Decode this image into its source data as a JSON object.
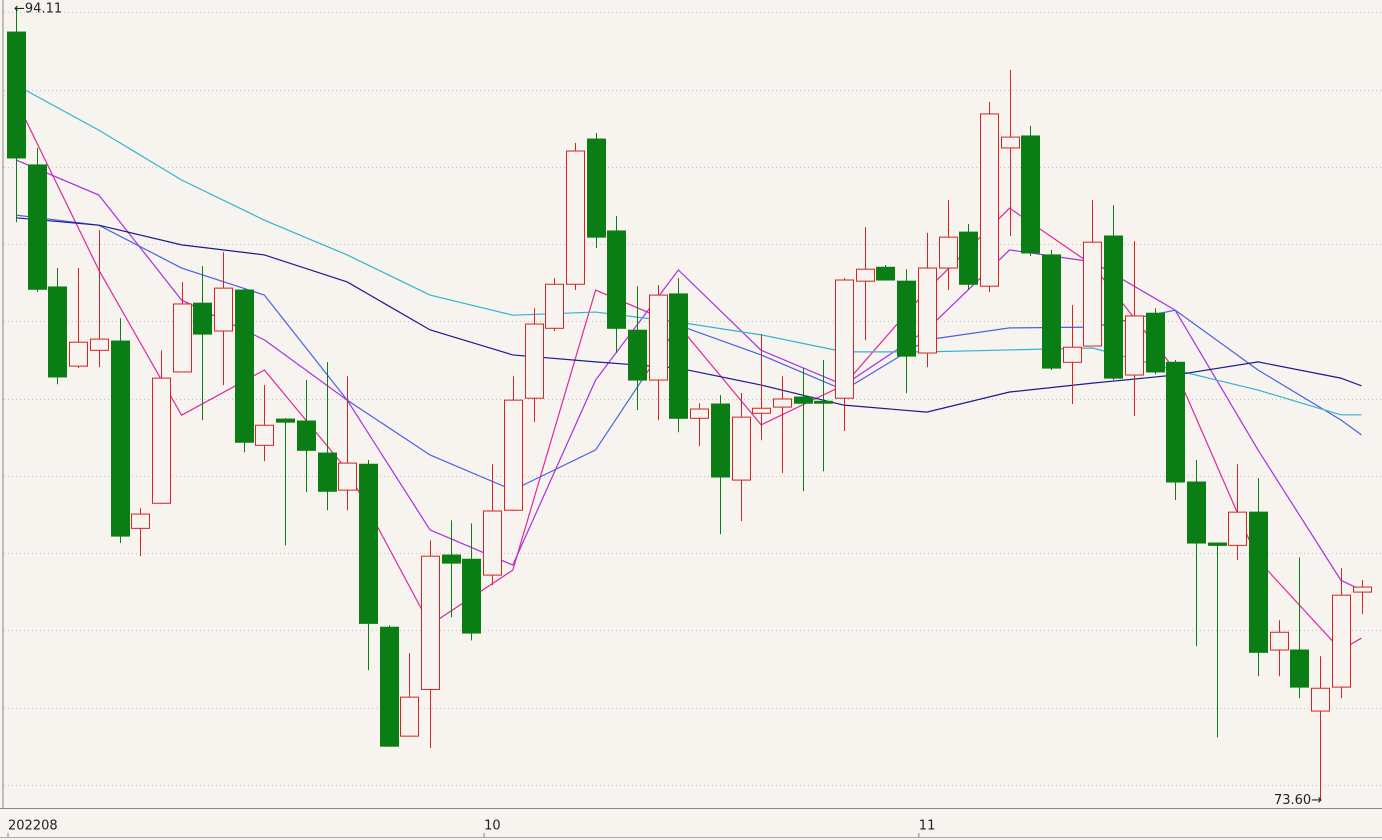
{
  "chart_data": {
    "type": "candlestick",
    "open": [
      93.49,
      90.05,
      86.89,
      84.84,
      85.25,
      85.49,
      80.64,
      81.29,
      84.69,
      86.47,
      85.75,
      86.81,
      82.79,
      83.47,
      83.42,
      82.59,
      81.63,
      82.3,
      78.08,
      75.26,
      76.47,
      79.95,
      79.84,
      79.43,
      81.11,
      84.01,
      85.82,
      86.96,
      90.72,
      88.34,
      85.77,
      84.48,
      86.71,
      83.49,
      83.86,
      81.89,
      83.62,
      83.78,
      84.04,
      83.93,
      84.01,
      87.04,
      87.4,
      87.04,
      85.18,
      87.38,
      88.31,
      86.91,
      90.49,
      90.8,
      87.72,
      84.94,
      85.36,
      88.21,
      84.61,
      86.21,
      84.94,
      81.84,
      80.26,
      80.2,
      81.06,
      77.49,
      77.49,
      75.91,
      76.53,
      78.99
    ],
    "high": [
      94.11,
      90.49,
      87.38,
      87.38,
      88.36,
      86.08,
      81.16,
      85.25,
      87.02,
      87.43,
      87.79,
      86.86,
      84.35,
      83.49,
      84.48,
      84.94,
      84.58,
      82.41,
      78.13,
      77.41,
      80.33,
      80.85,
      80.77,
      82.3,
      84.58,
      86.34,
      87.12,
      90.62,
      90.88,
      88.73,
      86.91,
      86.94,
      87.12,
      83.88,
      84.09,
      84.14,
      85.67,
      84.58,
      84.79,
      85.0,
      87.12,
      88.44,
      87.46,
      87.35,
      88.29,
      89.14,
      88.52,
      91.68,
      92.51,
      91.06,
      87.85,
      86.42,
      89.14,
      89.01,
      88.08,
      86.34,
      85.0,
      82.41,
      80.26,
      82.3,
      81.94,
      78.26,
      79.89,
      77.33,
      79.61,
      79.3
    ],
    "low": [
      88.57,
      86.76,
      84.37,
      84.79,
      84.81,
      80.26,
      79.92,
      81.29,
      84.69,
      83.44,
      84.35,
      82.61,
      82.38,
      80.2,
      81.58,
      81.11,
      81.11,
      76.97,
      75.0,
      75.26,
      74.95,
      78.34,
      77.74,
      79.17,
      81.09,
      83.39,
      85.75,
      86.81,
      87.9,
      85.18,
      83.7,
      83.44,
      83.13,
      82.77,
      80.49,
      80.83,
      82.92,
      82.07,
      81.6,
      82.12,
      83.16,
      85.51,
      87.07,
      84.14,
      84.81,
      86.81,
      86.81,
      86.76,
      88.21,
      87.69,
      84.74,
      83.86,
      85.36,
      84.48,
      83.55,
      84.63,
      81.37,
      77.59,
      75.23,
      79.82,
      76.81,
      76.81,
      76.24,
      73.6,
      76.24,
      78.42
    ],
    "close": [
      90.23,
      86.83,
      84.56,
      85.46,
      85.54,
      80.44,
      81.01,
      84.53,
      86.45,
      85.67,
      86.86,
      82.87,
      83.31,
      83.39,
      82.66,
      81.6,
      82.33,
      78.18,
      75.0,
      76.27,
      79.92,
      79.74,
      77.93,
      81.09,
      83.96,
      85.93,
      86.96,
      90.41,
      88.18,
      85.82,
      84.48,
      86.68,
      83.49,
      83.73,
      81.97,
      83.52,
      83.75,
      83.99,
      83.88,
      83.88,
      87.07,
      87.35,
      87.07,
      85.1,
      87.38,
      88.18,
      86.96,
      91.37,
      90.77,
      87.77,
      84.79,
      85.33,
      88.05,
      84.53,
      86.14,
      84.69,
      81.84,
      80.26,
      80.2,
      81.06,
      77.43,
      77.95,
      76.53,
      76.5,
      78.91,
      79.12
    ],
    "up_color": "#d42424",
    "down_color": "#0a7d14",
    "lines": [
      {
        "color": "#e0289a",
        "x": [
          0,
          4,
          8,
          12,
          16,
          20,
          24,
          28,
          32,
          36,
          40,
          44,
          48,
          52,
          56,
          60,
          64,
          65
        ],
        "values": [
          91.73,
          87.33,
          83.57,
          84.74,
          82.15,
          78.14,
          79.56,
          86.81,
          85.9,
          83.32,
          84.35,
          86.81,
          88.93,
          87.46,
          84.74,
          79.82,
          77.49,
          77.8
        ]
      },
      {
        "color": "#a830e0",
        "x": [
          0,
          4,
          8,
          12,
          16,
          20,
          24,
          28,
          32,
          36,
          40,
          44,
          48,
          52,
          56,
          60,
          64,
          65
        ],
        "values": [
          90.18,
          89.27,
          86.55,
          85.52,
          83.96,
          80.6,
          79.69,
          84.48,
          87.33,
          85.25,
          84.35,
          85.78,
          87.85,
          87.54,
          86.29,
          82.67,
          79.3,
          79.04
        ]
      },
      {
        "color": "#4a62e0",
        "x": [
          0,
          4,
          8,
          12,
          16,
          20,
          24,
          28,
          32,
          36,
          40,
          44,
          48,
          52,
          56,
          60,
          64,
          65
        ],
        "values": [
          88.75,
          88.49,
          87.38,
          86.68,
          83.96,
          82.54,
          81.63,
          82.67,
          85.9,
          85.13,
          84.22,
          85.52,
          85.83,
          85.85,
          86.29,
          84.74,
          83.45,
          83.06
        ]
      },
      {
        "color": "#34b4cc",
        "x": [
          0,
          4,
          8,
          12,
          16,
          20,
          24,
          28,
          32,
          36,
          40,
          44,
          48,
          52,
          56,
          60,
          64,
          65
        ],
        "values": [
          92.12,
          90.95,
          89.66,
          88.62,
          87.72,
          86.68,
          86.16,
          86.24,
          85.98,
          85.65,
          85.21,
          85.21,
          85.26,
          85.31,
          84.74,
          84.22,
          83.58,
          83.58
        ]
      },
      {
        "color": "#1c1c8a",
        "x": [
          0,
          4,
          8,
          12,
          16,
          20,
          24,
          28,
          32,
          36,
          40,
          44,
          48,
          52,
          56,
          60,
          64,
          65
        ],
        "values": [
          88.68,
          88.49,
          87.98,
          87.72,
          87.02,
          85.78,
          85.13,
          84.95,
          84.79,
          84.35,
          83.83,
          83.65,
          84.17,
          84.4,
          84.61,
          84.95,
          84.53,
          84.33
        ]
      }
    ],
    "ylim": [
      73.4,
      94.32
    ],
    "yticks": [
      74,
      76,
      78,
      80,
      82,
      84,
      86,
      88,
      90,
      92,
      94
    ],
    "grid": true,
    "x_labels": [
      {
        "label": "202208",
        "index": 0
      },
      {
        "label": "10",
        "index": 23
      },
      {
        "label": "11",
        "index": 44
      }
    ],
    "annotations": {
      "high": {
        "label": "←94.11",
        "index": 0,
        "value": 94.11
      },
      "low": {
        "label": "73.60→",
        "index": 63,
        "value": 73.6
      }
    }
  }
}
